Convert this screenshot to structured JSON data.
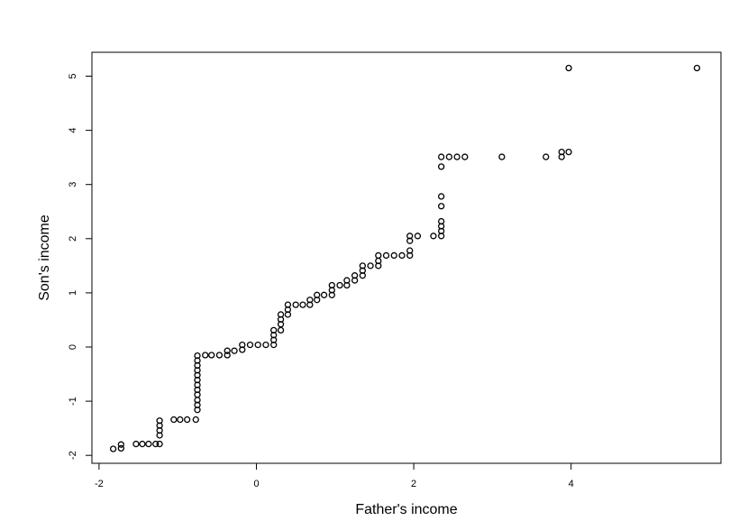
{
  "chart_data": {
    "type": "scatter",
    "title": "",
    "xlabel": "Father's income",
    "ylabel": "Son's income",
    "xlim": [
      -2.1,
      5.9
    ],
    "ylim": [
      -2.2,
      5.45
    ],
    "x_ticks": [
      -2,
      0,
      2,
      4
    ],
    "y_ticks": [
      -2,
      -1,
      0,
      1,
      2,
      3,
      4,
      5
    ],
    "x_tick_labels": [
      "-2",
      "0",
      "2",
      "4"
    ],
    "y_tick_labels": [
      "-2",
      "-1",
      "0",
      "1",
      "2",
      "3",
      "4",
      "5"
    ],
    "marker": "open-circle",
    "grid": false,
    "points": [
      [
        -1.82,
        -1.88
      ],
      [
        -1.72,
        -1.87
      ],
      [
        -1.72,
        -1.8
      ],
      [
        -1.53,
        -1.79
      ],
      [
        -1.45,
        -1.79
      ],
      [
        -1.37,
        -1.79
      ],
      [
        -1.28,
        -1.79
      ],
      [
        -1.23,
        -1.79
      ],
      [
        -1.23,
        -1.63
      ],
      [
        -1.23,
        -1.54
      ],
      [
        -1.23,
        -1.45
      ],
      [
        -1.23,
        -1.36
      ],
      [
        -1.05,
        -1.34
      ],
      [
        -0.97,
        -1.34
      ],
      [
        -0.88,
        -1.34
      ],
      [
        -0.77,
        -1.34
      ],
      [
        -0.75,
        -1.16
      ],
      [
        -0.75,
        -1.07
      ],
      [
        -0.75,
        -0.98
      ],
      [
        -0.75,
        -0.88
      ],
      [
        -0.75,
        -0.79
      ],
      [
        -0.75,
        -0.7
      ],
      [
        -0.75,
        -0.61
      ],
      [
        -0.75,
        -0.52
      ],
      [
        -0.75,
        -0.43
      ],
      [
        -0.75,
        -0.34
      ],
      [
        -0.75,
        -0.25
      ],
      [
        -0.75,
        -0.16
      ],
      [
        -0.65,
        -0.15
      ],
      [
        -0.57,
        -0.15
      ],
      [
        -0.47,
        -0.15
      ],
      [
        -0.37,
        -0.15
      ],
      [
        -0.37,
        -0.07
      ],
      [
        -0.28,
        -0.07
      ],
      [
        -0.18,
        -0.05
      ],
      [
        -0.18,
        0.04
      ],
      [
        -0.08,
        0.04
      ],
      [
        0.02,
        0.04
      ],
      [
        0.12,
        0.04
      ],
      [
        0.22,
        0.04
      ],
      [
        0.22,
        0.13
      ],
      [
        0.22,
        0.22
      ],
      [
        0.22,
        0.31
      ],
      [
        0.31,
        0.31
      ],
      [
        0.31,
        0.42
      ],
      [
        0.31,
        0.51
      ],
      [
        0.31,
        0.6
      ],
      [
        0.4,
        0.6
      ],
      [
        0.4,
        0.69
      ],
      [
        0.4,
        0.78
      ],
      [
        0.5,
        0.78
      ],
      [
        0.59,
        0.78
      ],
      [
        0.68,
        0.78
      ],
      [
        0.68,
        0.87
      ],
      [
        0.77,
        0.87
      ],
      [
        0.77,
        0.96
      ],
      [
        0.86,
        0.96
      ],
      [
        0.96,
        0.96
      ],
      [
        0.96,
        1.05
      ],
      [
        0.96,
        1.14
      ],
      [
        1.06,
        1.14
      ],
      [
        1.15,
        1.14
      ],
      [
        1.15,
        1.23
      ],
      [
        1.25,
        1.23
      ],
      [
        1.25,
        1.32
      ],
      [
        1.35,
        1.32
      ],
      [
        1.35,
        1.41
      ],
      [
        1.35,
        1.5
      ],
      [
        1.45,
        1.5
      ],
      [
        1.55,
        1.5
      ],
      [
        1.55,
        1.59
      ],
      [
        1.55,
        1.69
      ],
      [
        1.65,
        1.69
      ],
      [
        1.75,
        1.69
      ],
      [
        1.85,
        1.69
      ],
      [
        1.95,
        1.69
      ],
      [
        1.95,
        1.78
      ],
      [
        1.95,
        1.96
      ],
      [
        1.95,
        2.05
      ],
      [
        2.05,
        2.05
      ],
      [
        2.25,
        2.05
      ],
      [
        2.35,
        2.05
      ],
      [
        2.35,
        2.14
      ],
      [
        2.35,
        2.23
      ],
      [
        2.35,
        2.32
      ],
      [
        2.35,
        2.6
      ],
      [
        2.35,
        2.78
      ],
      [
        2.35,
        3.33
      ],
      [
        2.35,
        3.51
      ],
      [
        2.45,
        3.51
      ],
      [
        2.55,
        3.51
      ],
      [
        2.65,
        3.51
      ],
      [
        3.12,
        3.51
      ],
      [
        3.68,
        3.51
      ],
      [
        3.88,
        3.51
      ],
      [
        3.88,
        3.6
      ],
      [
        3.97,
        3.6
      ],
      [
        3.97,
        5.15
      ],
      [
        5.6,
        5.15
      ]
    ]
  }
}
